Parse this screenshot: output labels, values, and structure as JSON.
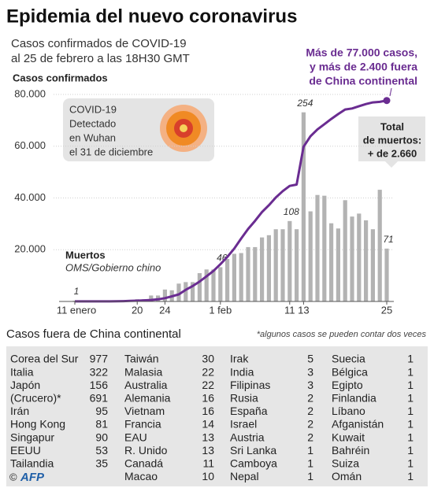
{
  "chart_data": {
    "type": "combo",
    "title": "Epidemia del nuevo coronavirus",
    "subtitle": [
      "Casos confirmados de COVID-19",
      "al 25 de febrero a las 18H30 GMT"
    ],
    "y_label": "Casos confirmados",
    "categories": [
      "11 enero",
      null,
      null,
      null,
      null,
      null,
      null,
      null,
      null,
      "20",
      null,
      null,
      null,
      "24",
      null,
      null,
      null,
      null,
      null,
      null,
      null,
      "1 feb",
      null,
      null,
      null,
      null,
      null,
      null,
      null,
      null,
      null,
      "11",
      null,
      "13",
      null,
      null,
      null,
      null,
      null,
      null,
      null,
      null,
      null,
      null,
      null,
      "25"
    ],
    "ylim": [
      0,
      80000
    ],
    "yticks": [
      {
        "value": 20000,
        "label": "20.000"
      },
      {
        "value": 40000,
        "label": "40.000"
      },
      {
        "value": 60000,
        "label": "60.000"
      },
      {
        "value": 80000,
        "label": "80.000"
      }
    ],
    "y2lim": [
      0,
      278
    ],
    "grid": true,
    "series": [
      {
        "type": "line",
        "color": "#6a2c91",
        "values": [
          41,
          41,
          41,
          41,
          41,
          45,
          62,
          121,
          198,
          291,
          440,
          571,
          830,
          1287,
          1975,
          2744,
          4515,
          5974,
          7711,
          9692,
          11791,
          14380,
          17205,
          20438,
          24324,
          28018,
          31161,
          34546,
          37198,
          40171,
          42638,
          44653,
          45171,
          59804,
          63851,
          66492,
          68500,
          70548,
          72436,
          74185,
          74576,
          75465,
          76288,
          76936,
          77150,
          77658
        ]
      },
      {
        "type": "bar",
        "color": "#b3b3b3",
        "axis": "y2",
        "values": [
          1,
          0,
          0,
          0,
          0,
          0,
          0,
          0,
          0,
          3,
          3,
          8,
          8,
          16,
          15,
          24,
          26,
          26,
          38,
          43,
          43,
          46,
          57,
          64,
          65,
          73,
          73,
          86,
          89,
          97,
          97,
          108,
          97,
          254,
          121,
          143,
          142,
          105,
          98,
          136,
          114,
          118,
          109,
          97,
          150,
          71
        ],
        "value_labels": [
          "1",
          null,
          null,
          null,
          null,
          null,
          null,
          null,
          null,
          null,
          null,
          null,
          null,
          null,
          null,
          null,
          null,
          null,
          null,
          null,
          null,
          "46",
          null,
          null,
          null,
          null,
          null,
          null,
          null,
          null,
          null,
          "108",
          null,
          "254",
          null,
          null,
          null,
          null,
          null,
          null,
          null,
          null,
          null,
          null,
          null,
          "71"
        ]
      }
    ],
    "annotation_cases": [
      "Más de 77.000 casos,",
      "y más de 2.400 fuera",
      "de China continental"
    ],
    "annotation_deaths": [
      "Total",
      "de muertos:",
      "+ de 2.660"
    ],
    "annotation_origin": [
      "COVID-19",
      "Detectado",
      "en Wuhan",
      "el 31 de diciembre"
    ],
    "annotation_bars": [
      "Muertos",
      "OMS/Gobierno chino"
    ]
  },
  "table": {
    "title": "Casos fuera de China continental",
    "note": "*algunos casos se pueden contar dos veces",
    "columns": [
      [
        [
          "Corea del Sur",
          977
        ],
        [
          "Italia",
          322
        ],
        [
          "Japón",
          156
        ],
        [
          "(Crucero)*",
          691
        ],
        [
          "Irán",
          95
        ],
        [
          "Hong Kong",
          81
        ],
        [
          "Singapur",
          90
        ],
        [
          "EEUU",
          53
        ],
        [
          "Tailandia",
          35
        ]
      ],
      [
        [
          "Taiwán",
          30
        ],
        [
          "Malasia",
          22
        ],
        [
          "Australia",
          22
        ],
        [
          "Alemania",
          16
        ],
        [
          "Vietnam",
          16
        ],
        [
          "Francia",
          14
        ],
        [
          "EAU",
          13
        ],
        [
          "R. Unido",
          13
        ],
        [
          "Canadá",
          11
        ],
        [
          "Macao",
          10
        ]
      ],
      [
        [
          "Irak",
          5
        ],
        [
          "India",
          3
        ],
        [
          "Filipinas",
          3
        ],
        [
          "Rusia",
          2
        ],
        [
          "España",
          2
        ],
        [
          "Israel",
          2
        ],
        [
          "Austria",
          2
        ],
        [
          "Sri Lanka",
          1
        ],
        [
          "Camboya",
          1
        ],
        [
          "Nepal",
          1
        ]
      ],
      [
        [
          "Suecia",
          1
        ],
        [
          "Bélgica",
          1
        ],
        [
          "Egipto",
          1
        ],
        [
          "Finlandia",
          1
        ],
        [
          "Líbano",
          1
        ],
        [
          "Afganistán",
          1
        ],
        [
          "Kuwait",
          1
        ],
        [
          "Bahréin",
          1
        ],
        [
          "Suiza",
          1
        ],
        [
          "Omán",
          1
        ]
      ]
    ]
  },
  "copyright": "©",
  "credit": "AFP"
}
